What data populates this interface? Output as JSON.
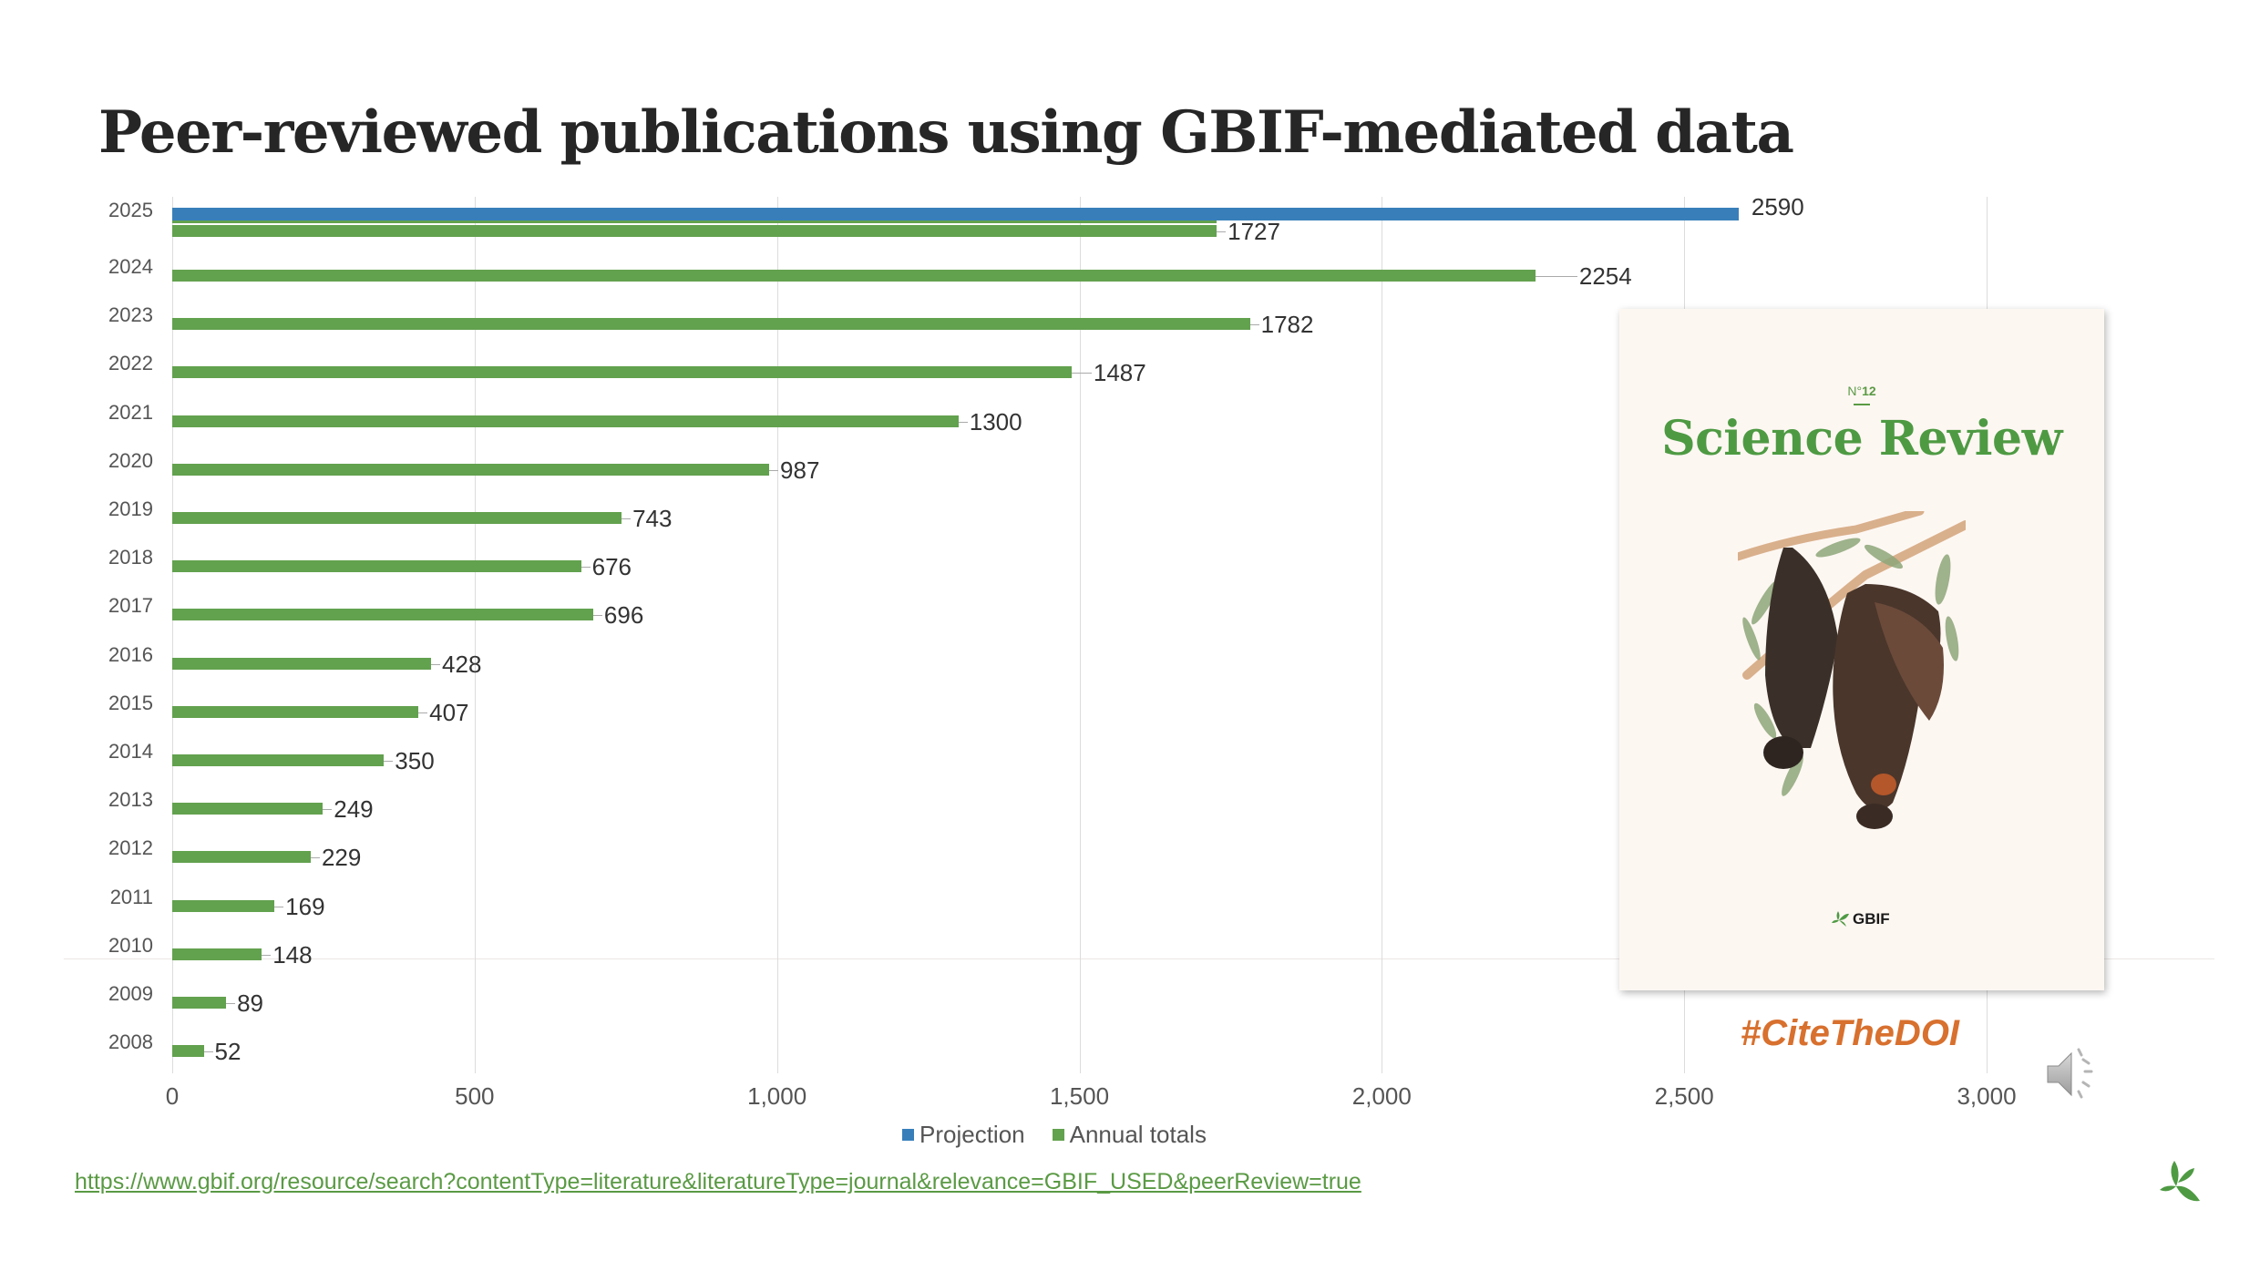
{
  "slide": {
    "title": "Peer-reviewed publications using GBIF-mediated data",
    "source_url": "https://www.gbif.org/resource/search?contentType=literature&literatureType=journal&relevance=GBIF_USED&peerReview=true",
    "hashtag": "#CiteTheDOI"
  },
  "cover": {
    "issue_prefix": "N°",
    "issue_number": "12",
    "title": "Science Review",
    "logo_text": "GBIF"
  },
  "legend": {
    "projection": "Projection",
    "annual": "Annual totals"
  },
  "colors": {
    "projection": "#387fba",
    "annual": "#62a14e",
    "hashtag": "#d8702e",
    "cover_title": "#4e9a43"
  },
  "axis": {
    "x_ticks": [
      "0",
      "500",
      "1,000",
      "1,500",
      "2,000",
      "2,500",
      "3,000"
    ]
  },
  "chart_data": {
    "type": "bar",
    "orientation": "horizontal",
    "title": "Peer-reviewed publications using GBIF-mediated data",
    "xlabel": "",
    "ylabel": "",
    "xlim": [
      0,
      3000
    ],
    "grid": true,
    "legend_position": "bottom",
    "categories": [
      "2025",
      "2024",
      "2023",
      "2022",
      "2021",
      "2020",
      "2019",
      "2018",
      "2017",
      "2016",
      "2015",
      "2014",
      "2013",
      "2012",
      "2011",
      "2010",
      "2009",
      "2008"
    ],
    "series": [
      {
        "name": "Projection",
        "values": [
          2590,
          null,
          null,
          null,
          null,
          null,
          null,
          null,
          null,
          null,
          null,
          null,
          null,
          null,
          null,
          null,
          null,
          null
        ]
      },
      {
        "name": "Annual totals",
        "values": [
          1727,
          2254,
          1782,
          1487,
          1300,
          987,
          743,
          676,
          696,
          428,
          407,
          350,
          249,
          229,
          169,
          148,
          89,
          52
        ]
      }
    ]
  }
}
